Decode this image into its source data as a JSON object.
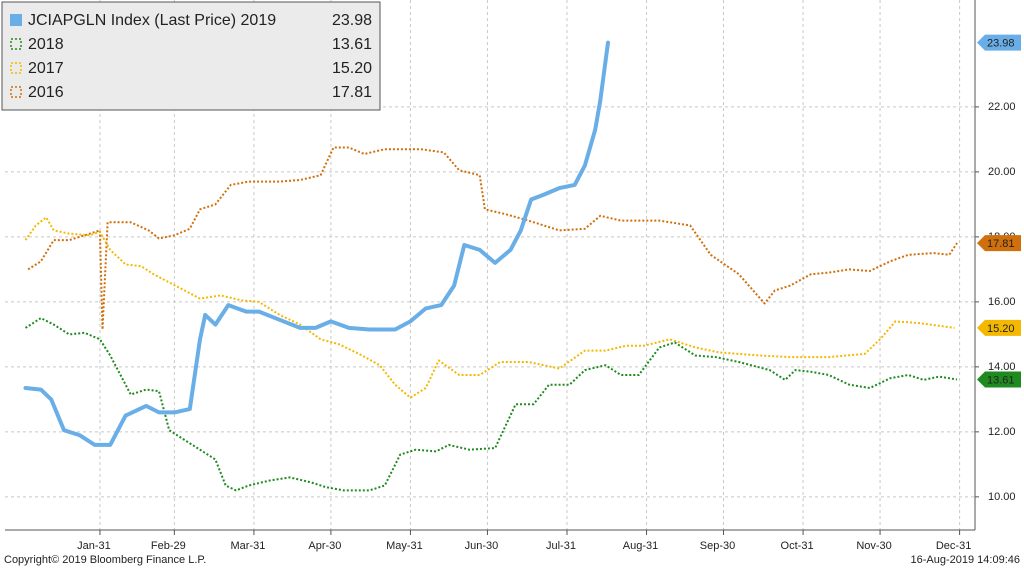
{
  "chart_data": {
    "type": "line",
    "source": "Copyright© 2019 Bloomberg Finance L.P.",
    "timestamp": "16-Aug-2019 14:09:46",
    "xlim": [
      -6,
      372
    ],
    "xticks": [
      {
        "value": 31,
        "label": "Jan-31"
      },
      {
        "value": 60,
        "label": "Feb-29"
      },
      {
        "value": 91,
        "label": "Mar-31"
      },
      {
        "value": 121,
        "label": "Apr-30"
      },
      {
        "value": 152,
        "label": "May-31"
      },
      {
        "value": 182,
        "label": "Jun-30"
      },
      {
        "value": 213,
        "label": "Jul-31"
      },
      {
        "value": 244,
        "label": "Aug-31"
      },
      {
        "value": 274,
        "label": "Sep-30"
      },
      {
        "value": 305,
        "label": "Oct-31"
      },
      {
        "value": 335,
        "label": "Nov-30"
      },
      {
        "value": 366,
        "label": "Dec-31"
      }
    ],
    "ylim": [
      8.98,
      25.29
    ],
    "yticks": [
      {
        "value": 10,
        "label": "10.00"
      },
      {
        "value": 12,
        "label": "12.00"
      },
      {
        "value": 14,
        "label": "14.00"
      },
      {
        "value": 16,
        "label": "16.00"
      },
      {
        "value": 18,
        "label": "18.00"
      },
      {
        "value": 20,
        "label": "20.00"
      },
      {
        "value": 22,
        "label": "22.00"
      }
    ],
    "grid": true,
    "legend": "top-left",
    "series": [
      {
        "name": "JCIAPGLN Index (Last Price) 2019",
        "color": "#6aaee8",
        "style": "solid",
        "legend_value": "23.98",
        "x": [
          2,
          8,
          12,
          17,
          23,
          29,
          35,
          41,
          49,
          54,
          60,
          66,
          70,
          72,
          76,
          81,
          88,
          93,
          101,
          109,
          115,
          121,
          128,
          136,
          146,
          152,
          158,
          164,
          169,
          173,
          179,
          185,
          191,
          195,
          199,
          204,
          210,
          216,
          220,
          224,
          226,
          229
        ],
        "values": [
          13.35,
          13.3,
          13.0,
          12.05,
          11.9,
          11.6,
          11.6,
          12.5,
          12.8,
          12.6,
          12.6,
          12.7,
          14.85,
          15.6,
          15.3,
          15.9,
          15.7,
          15.7,
          15.45,
          15.2,
          15.2,
          15.4,
          15.2,
          15.15,
          15.15,
          15.4,
          15.8,
          15.9,
          16.5,
          17.75,
          17.6,
          17.2,
          17.6,
          18.2,
          19.15,
          19.3,
          19.5,
          19.6,
          20.2,
          21.3,
          22.2,
          23.98
        ]
      },
      {
        "name": "2018",
        "color": "#1f8a1f",
        "style": "dotted",
        "legend_value": "13.61",
        "x": [
          2,
          8,
          13,
          19,
          25,
          31,
          35,
          39,
          43,
          49,
          54,
          58,
          64,
          70,
          76,
          80,
          84,
          89,
          97,
          105,
          113,
          119,
          126,
          136,
          142,
          148,
          154,
          162,
          167,
          175,
          185,
          193,
          200,
          206,
          214,
          220,
          228,
          234,
          241,
          249,
          255,
          263,
          271,
          280,
          292,
          298,
          302,
          308,
          315,
          323,
          331,
          339,
          346,
          352,
          358,
          365
        ],
        "values": [
          15.2,
          15.5,
          15.3,
          15.0,
          15.05,
          14.85,
          14.35,
          13.75,
          13.15,
          13.3,
          13.25,
          12.05,
          11.75,
          11.45,
          11.15,
          10.35,
          10.2,
          10.35,
          10.5,
          10.6,
          10.45,
          10.3,
          10.2,
          10.2,
          10.35,
          11.3,
          11.45,
          11.4,
          11.6,
          11.45,
          11.5,
          12.85,
          12.85,
          13.45,
          13.45,
          13.9,
          14.05,
          13.75,
          13.75,
          14.6,
          14.75,
          14.35,
          14.3,
          14.15,
          13.9,
          13.6,
          13.9,
          13.85,
          13.75,
          13.45,
          13.35,
          13.65,
          13.75,
          13.6,
          13.7,
          13.61
        ]
      },
      {
        "name": "2017",
        "color": "#f5b800",
        "style": "dotted",
        "legend_value": "15.20",
        "x": [
          2,
          6,
          10,
          13,
          19,
          27,
          31,
          35,
          41,
          47,
          52,
          58,
          64,
          70,
          78,
          86,
          93,
          101,
          109,
          117,
          124,
          132,
          140,
          146,
          152,
          158,
          163,
          171,
          179,
          187,
          198,
          210,
          220,
          228,
          236,
          243,
          253,
          263,
          272,
          288,
          300,
          315,
          329,
          335,
          341,
          350,
          364
        ],
        "values": [
          17.9,
          18.35,
          18.6,
          18.2,
          18.1,
          18.05,
          18.15,
          17.6,
          17.15,
          17.1,
          16.85,
          16.6,
          16.35,
          16.1,
          16.2,
          16.05,
          16.0,
          15.6,
          15.3,
          14.85,
          14.7,
          14.4,
          14.05,
          13.45,
          13.05,
          13.35,
          14.2,
          13.75,
          13.75,
          14.15,
          14.15,
          13.95,
          14.5,
          14.5,
          14.65,
          14.65,
          14.85,
          14.6,
          14.45,
          14.35,
          14.3,
          14.3,
          14.4,
          14.85,
          15.4,
          15.35,
          15.2
        ]
      },
      {
        "name": "2016",
        "color": "#d0700c",
        "style": "dotted",
        "legend_value": "17.81",
        "x": [
          3,
          8,
          13,
          19,
          25,
          31,
          32,
          34,
          43,
          50,
          54,
          60,
          66,
          70,
          76,
          82,
          89,
          101,
          109,
          117,
          122,
          128,
          134,
          142,
          156,
          165,
          171,
          179,
          181,
          189,
          198,
          210,
          220,
          226,
          234,
          249,
          261,
          269,
          280,
          290,
          294,
          300,
          308,
          315,
          323,
          331,
          339,
          346,
          356,
          362,
          365
        ],
        "values": [
          17.0,
          17.25,
          17.9,
          17.9,
          18.05,
          18.2,
          15.15,
          18.45,
          18.45,
          18.2,
          17.95,
          18.05,
          18.25,
          18.85,
          19.0,
          19.6,
          19.7,
          19.7,
          19.75,
          19.9,
          20.75,
          20.75,
          20.55,
          20.7,
          20.7,
          20.6,
          20.05,
          19.9,
          18.85,
          18.7,
          18.5,
          18.2,
          18.25,
          18.65,
          18.5,
          18.5,
          18.35,
          17.45,
          16.85,
          15.95,
          16.35,
          16.5,
          16.85,
          16.9,
          17.0,
          16.95,
          17.25,
          17.45,
          17.5,
          17.45,
          17.81
        ]
      }
    ]
  }
}
